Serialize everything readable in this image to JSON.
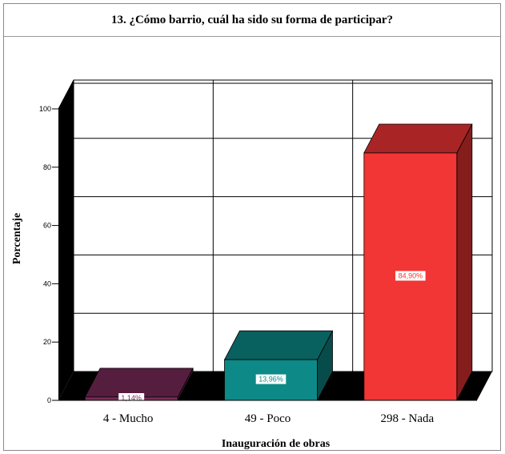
{
  "chart_data": {
    "type": "bar",
    "title": "13. ¿Cómo barrio, cuál ha sido su forma de participar?",
    "xlabel": "Inauguración de obras",
    "ylabel": "Porcentaje",
    "ylim": [
      0,
      100
    ],
    "yticks": [
      "0",
      "20",
      "40",
      "60",
      "80",
      "100"
    ],
    "categories": [
      "4 - Mucho",
      "49 - Poco",
      "298 - Nada"
    ],
    "values": [
      1.14,
      13.96,
      84.9
    ],
    "data_labels": [
      "1,14%",
      "13,96%",
      "84,90%"
    ],
    "colors": [
      "#7a2b5a",
      "#0d8a87",
      "#f23535"
    ],
    "grid": true,
    "style": "3d"
  }
}
